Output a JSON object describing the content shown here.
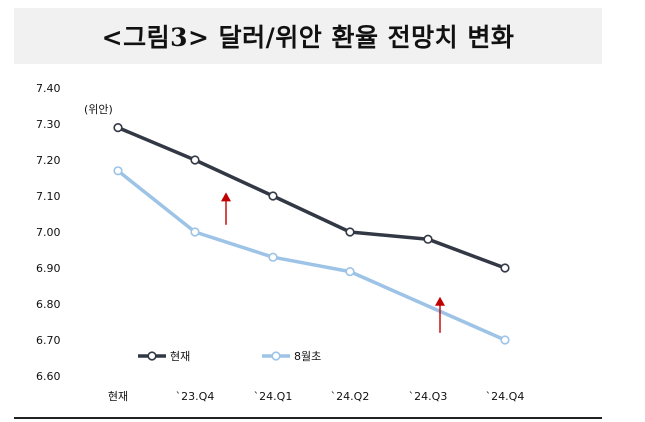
{
  "title": "<그림3> 달러/위안 환율 전망치 변화",
  "chart_data": {
    "type": "line",
    "title": "",
    "xlabel": "",
    "ylabel": "",
    "unit_label": "(위안)",
    "categories": [
      "현재",
      "`23.Q4",
      "`24.Q1",
      "`24.Q2",
      "`24.Q3",
      "`24.Q4"
    ],
    "series": [
      {
        "name": "현재",
        "color": "#333845",
        "x_start_index": 0,
        "values": [
          7.29,
          7.2,
          7.1,
          7.0,
          6.98,
          6.9
        ]
      },
      {
        "name": "8월초",
        "color": "#9dc3e6",
        "x_start_index": 0,
        "values": [
          7.17,
          7.0,
          6.93,
          6.89,
          null,
          6.7
        ]
      }
    ],
    "ylim": [
      6.6,
      7.4
    ],
    "yticks": [
      "7.40",
      "7.30",
      "7.20",
      "7.10",
      "7.00",
      "6.90",
      "6.80",
      "6.70",
      "6.60"
    ],
    "grid": false,
    "legend_position": "bottom-left",
    "annotations": [
      {
        "type": "arrow-up",
        "color": "#c00000",
        "category": "`23.Q4",
        "from": 7.02,
        "to": 7.11
      },
      {
        "type": "arrow-up",
        "color": "#c00000",
        "category": "`24.Q3",
        "from": 6.72,
        "to": 6.82
      }
    ]
  }
}
